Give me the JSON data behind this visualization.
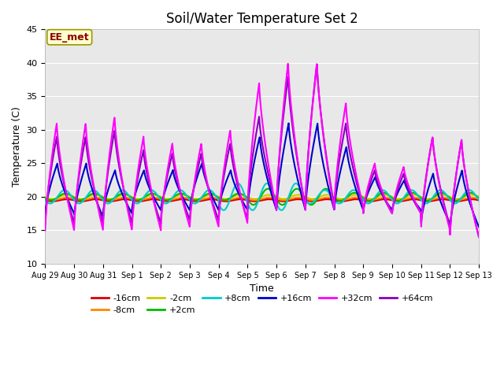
{
  "title": "Soil/Water Temperature Set 2",
  "xlabel": "Time",
  "ylabel": "Temperature (C)",
  "ylim": [
    10,
    45
  ],
  "xlim": [
    0,
    15
  ],
  "annotation_text": "EE_met",
  "tick_labels": [
    "Aug 29",
    "Aug 30",
    "Aug 31",
    "Sep 1",
    "Sep 2",
    "Sep 3",
    "Sep 4",
    "Sep 5",
    "Sep 6",
    "Sep 7",
    "Sep 8",
    "Sep 9",
    "Sep 10",
    "Sep 11",
    "Sep 12",
    "Sep 13"
  ],
  "series": {
    "-16cm": {
      "color": "#dd0000",
      "lw": 1.8
    },
    "-8cm": {
      "color": "#ff8800",
      "lw": 1.5
    },
    "-2cm": {
      "color": "#cccc00",
      "lw": 1.5
    },
    "+2cm": {
      "color": "#00bb00",
      "lw": 1.5
    },
    "+8cm": {
      "color": "#00cccc",
      "lw": 1.5
    },
    "+16cm": {
      "color": "#0000cc",
      "lw": 1.5
    },
    "+32cm": {
      "color": "#ff00ff",
      "lw": 1.5
    },
    "+64cm": {
      "color": "#8800bb",
      "lw": 1.5
    }
  },
  "legend_order": [
    "-16cm",
    "-8cm",
    "-2cm",
    "+2cm",
    "+8cm",
    "+16cm",
    "+32cm",
    "+64cm"
  ],
  "legend_ncol_row1": 6,
  "legend_ncol_row2": 2
}
